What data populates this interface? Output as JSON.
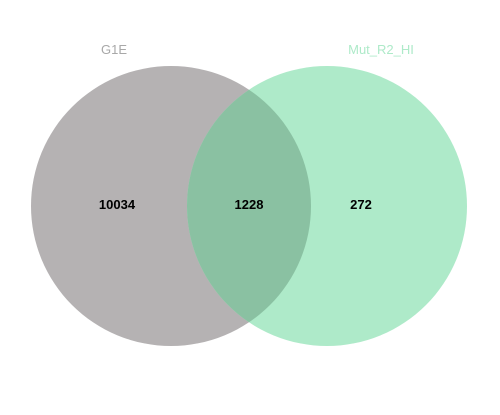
{
  "diagram": {
    "type": "venn",
    "sets": [
      {
        "label": "G1E",
        "fill_color": "#b5b2b3",
        "label_color": "#a8a8a8"
      },
      {
        "label": "Mut_R2_HI",
        "fill_color": "#aeeac9",
        "label_color": "#aeeac9"
      }
    ],
    "overlap_color": "#8ac1a2",
    "regions": {
      "left_only": "10034",
      "intersection": "1228",
      "right_only": "272"
    }
  }
}
